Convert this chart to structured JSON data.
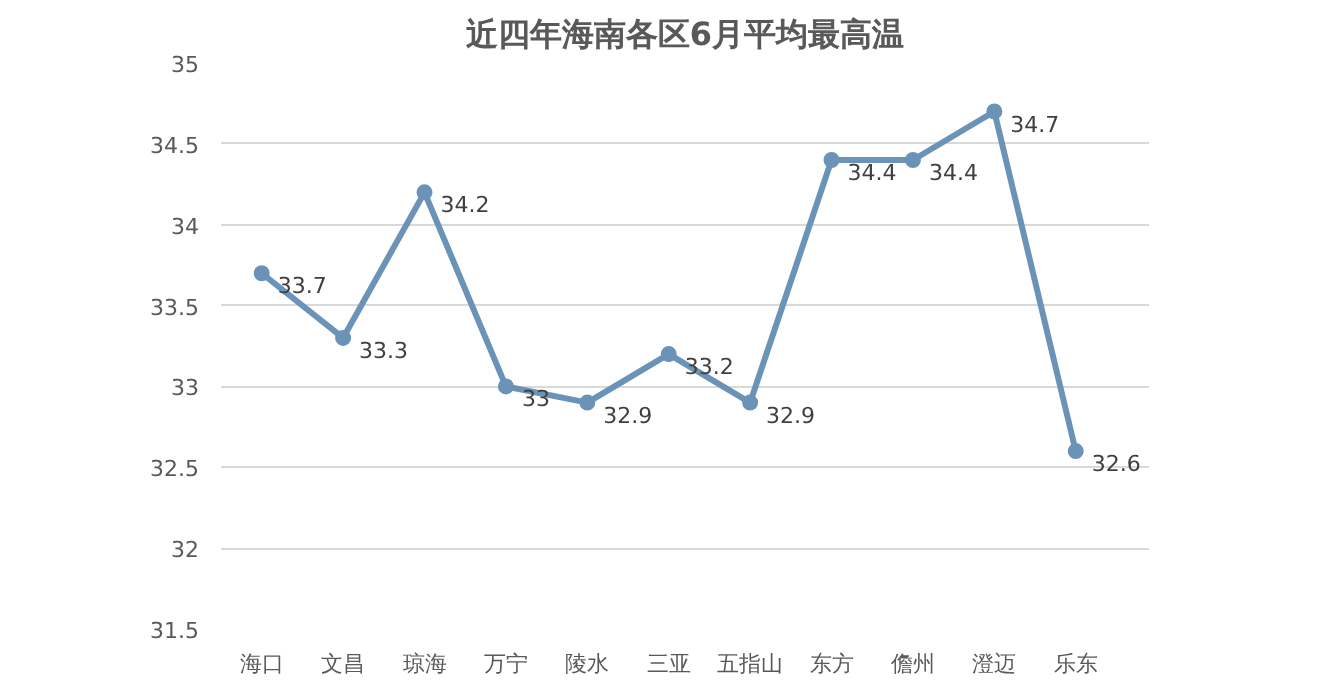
{
  "chart_data": {
    "type": "line",
    "title": "近四年海南各区6月平均最高温",
    "categories": [
      "海口",
      "文昌",
      "琼海",
      "万宁",
      "陵水",
      "三亚",
      "五指山",
      "东方",
      "儋州",
      "澄迈",
      "乐东"
    ],
    "series": [
      {
        "color": "#6b93b8",
        "values": [
          33.7,
          33.3,
          34.2,
          33,
          32.9,
          33.2,
          32.9,
          34.4,
          34.4,
          34.7,
          32.6
        ]
      }
    ],
    "ylim": [
      31.5,
      35
    ],
    "yticks": [
      31.5,
      32,
      32.5,
      33,
      33.5,
      34,
      34.5,
      35
    ],
    "grid": "y",
    "marker": "circle",
    "line_style": "solid",
    "data_labels": true
  }
}
